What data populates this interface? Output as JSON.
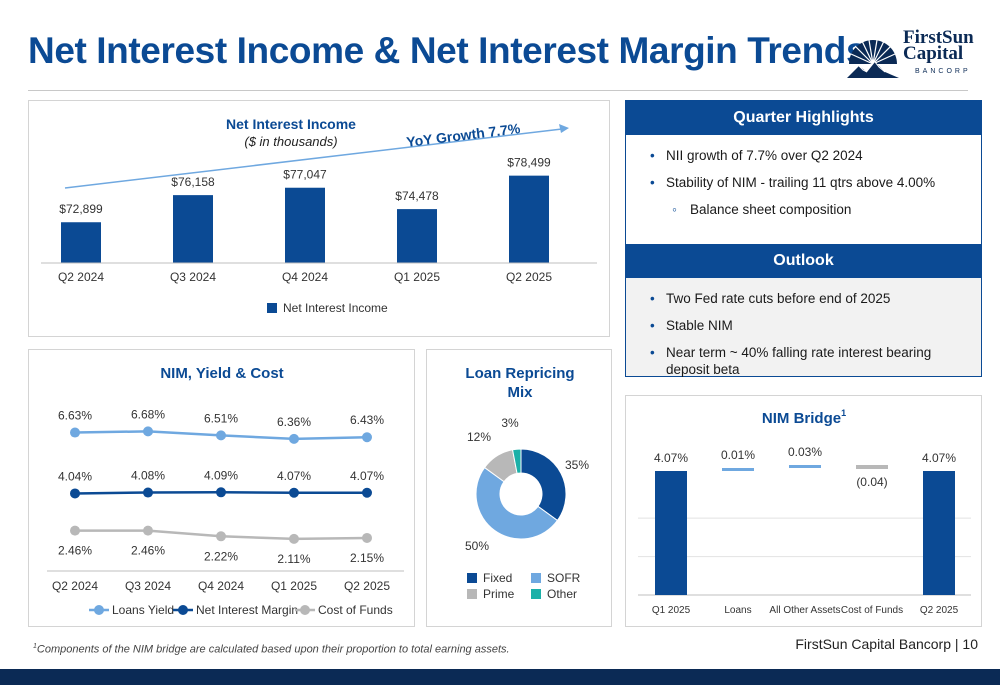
{
  "title": "Net Interest Income & Net Interest Margin Trends",
  "logo": {
    "line1": "FirstSun",
    "line2": "Capital",
    "line3": "BANCORP"
  },
  "footer": {
    "footnote_mark": "1",
    "footnote": "Components of the NIM bridge are calculated based upon their proportion to total earning assets.",
    "page": "FirstSun Capital Bancorp  |  10"
  },
  "highlights": {
    "header": "Quarter Highlights",
    "items": [
      "NII growth of 7.7% over Q2 2024",
      "Stability of NIM - trailing 11 qtrs above 4.00%"
    ],
    "sub_item": "Balance sheet composition",
    "outlook_header": "Outlook",
    "outlook_items": [
      "Two Fed rate cuts before end of 2025",
      "Stable NIM",
      "Near term ~ 40% falling rate interest bearing deposit beta"
    ]
  },
  "colors": {
    "navy": "#0b4a94",
    "light_blue": "#6fa8e0",
    "gray": "#b8b8b8",
    "teal": "#1bb0a8",
    "dark_navy": "#0b2a55"
  },
  "chart_data": [
    {
      "id": "nii",
      "type": "bar",
      "title": "Net Interest Income",
      "subtitle": "($ in thousands)",
      "annotation": "YoY Growth 7.7%",
      "categories": [
        "Q2 2024",
        "Q3 2024",
        "Q4 2024",
        "Q1 2025",
        "Q2 2025"
      ],
      "series": [
        {
          "name": "Net Interest Income",
          "values": [
            72899,
            76158,
            77047,
            74478,
            78499
          ]
        }
      ],
      "data_labels": [
        "$72,899",
        "$76,158",
        "$77,047",
        "$74,478",
        "$78,499"
      ],
      "ylim": [
        68000,
        80500
      ],
      "legend": "bottom"
    },
    {
      "id": "nim",
      "type": "line",
      "title": "NIM, Yield & Cost",
      "categories": [
        "Q2 2024",
        "Q3 2024",
        "Q4 2024",
        "Q1 2025",
        "Q2 2025"
      ],
      "series": [
        {
          "name": "Loans Yield",
          "values": [
            6.63,
            6.68,
            6.51,
            6.36,
            6.43
          ],
          "labels": [
            "6.63%",
            "6.68%",
            "6.51%",
            "6.36%",
            "6.43%"
          ],
          "color": "#6fa8e0"
        },
        {
          "name": "Net Interest Margin",
          "values": [
            4.04,
            4.08,
            4.09,
            4.07,
            4.07
          ],
          "labels": [
            "4.04%",
            "4.08%",
            "4.09%",
            "4.07%",
            "4.07%"
          ],
          "color": "#0b4a94"
        },
        {
          "name": "Cost of Funds",
          "values": [
            2.46,
            2.46,
            2.22,
            2.11,
            2.15
          ],
          "labels": [
            "2.46%",
            "2.46%",
            "2.22%",
            "2.11%",
            "2.15%"
          ],
          "color": "#b8b8b8"
        }
      ],
      "ylim": [
        1.0,
        7.8
      ],
      "legend": "bottom"
    },
    {
      "id": "mix",
      "type": "pie",
      "title": "Loan Repricing Mix",
      "slices": [
        {
          "name": "Fixed",
          "value": 35,
          "label": "35%",
          "color": "#0b4a94"
        },
        {
          "name": "SOFR",
          "value": 50,
          "label": "50%",
          "color": "#6fa8e0"
        },
        {
          "name": "Prime",
          "value": 12,
          "label": "12%",
          "color": "#b8b8b8"
        },
        {
          "name": "Other",
          "value": 3,
          "label": "3%",
          "color": "#1bb0a8"
        }
      ],
      "legend": "bottom"
    },
    {
      "id": "bridge",
      "type": "bar",
      "title": "NIM Bridge",
      "title_mark": "1",
      "categories": [
        "Q1 2025",
        "Loans",
        "All Other Assets",
        "Cost of Funds",
        "Q2 2025"
      ],
      "values": [
        4.07,
        0.01,
        0.03,
        -0.04,
        4.07
      ],
      "data_labels": [
        "4.07%",
        "0.01%",
        "0.03%",
        "(0.04)",
        "4.07%"
      ],
      "kinds": [
        "total",
        "delta",
        "delta",
        "delta",
        "total"
      ],
      "ylim": [
        0,
        4.5
      ]
    }
  ]
}
